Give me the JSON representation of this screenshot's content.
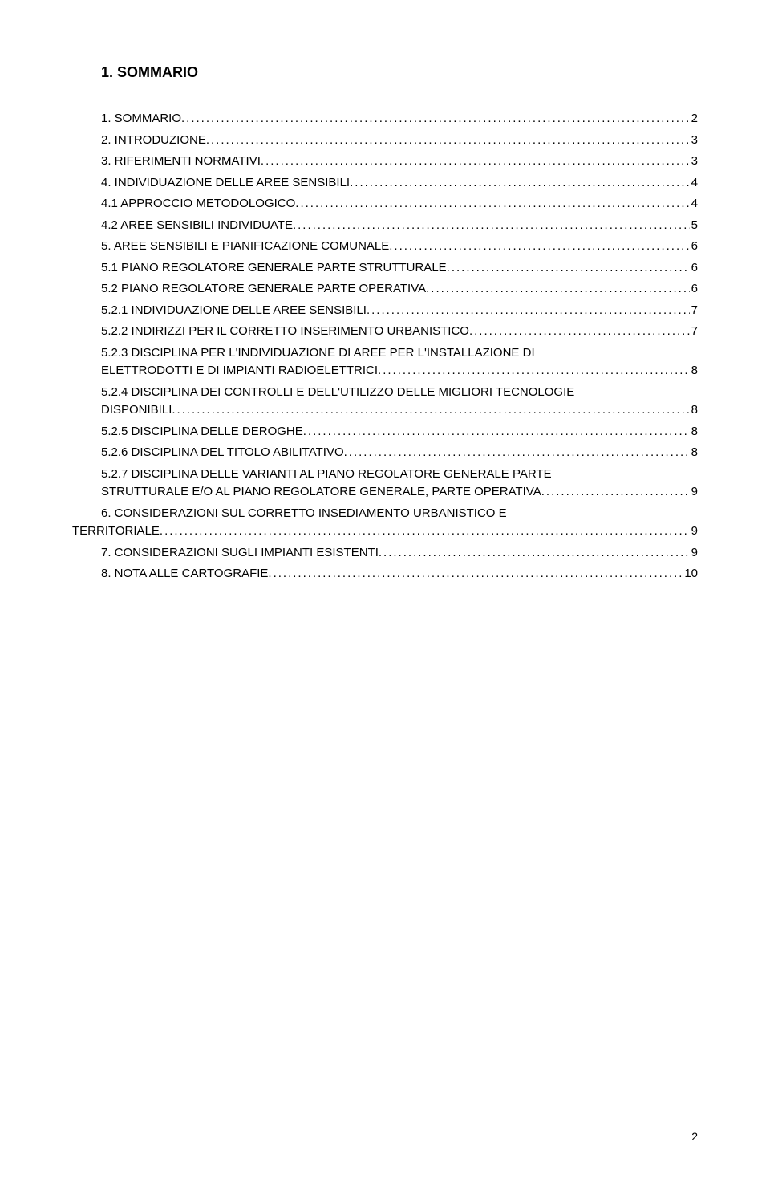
{
  "heading": "1.   SOMMARIO",
  "page_footer": "2",
  "toc": [
    {
      "label": "1.  SOMMARIO",
      "page": "2",
      "level": 1
    },
    {
      "label": "2.  INTRODUZIONE",
      "page": "3",
      "level": 1
    },
    {
      "label": "3.  RIFERIMENTI NORMATIVI",
      "page": "3",
      "level": 1
    },
    {
      "label": "4.  INDIVIDUAZIONE DELLE AREE SENSIBILI",
      "page": "4",
      "level": 1
    },
    {
      "label": "4.1  APPROCCIO METODOLOGICO",
      "page": "4",
      "level": 2,
      "sc": true
    },
    {
      "label": "4.2  AREE SENSIBILI INDIVIDUATE",
      "page": "5",
      "level": 2,
      "sc": true
    },
    {
      "label": "5.  AREE SENSIBILI E PIANIFICAZIONE COMUNALE",
      "page": "6",
      "level": 1
    },
    {
      "label": "5.1  PIANO REGOLATORE GENERALE PARTE STRUTTURALE",
      "page": "6",
      "level": 2,
      "sc": true
    },
    {
      "label": "5.2  PIANO REGOLATORE GENERALE PARTE OPERATIVA",
      "page": "6",
      "level": 2,
      "sc": true
    },
    {
      "label": "5.2.1  INDIVIDUAZIONE DELLE AREE SENSIBILI",
      "page": "7",
      "level": 3,
      "sc": true
    },
    {
      "label": "5.2.2  INDIRIZZI PER IL CORRETTO INSERIMENTO URBANISTICO",
      "page": "7",
      "level": 3,
      "sc": true
    },
    {
      "multi": true,
      "level": 3,
      "sc": true,
      "line1": "5.2.3  DISCIPLINA  PER  L'INDIVIDUAZIONE  DI  AREE  PER  L'INSTALLAZIONE  DI",
      "line2": "ELETTRODOTTI E DI IMPIANTI RADIOELETTRICI",
      "page": "8"
    },
    {
      "multi": true,
      "level": 3,
      "sc": true,
      "line1": "5.2.4  DISCIPLINA  DEI  CONTROLLI  E  DELL'UTILIZZO  DELLE  MIGLIORI  TECNOLOGIE",
      "line2": "DISPONIBILI",
      "page": "8"
    },
    {
      "label": "5.2.5  DISCIPLINA DELLE DEROGHE",
      "page": "8",
      "level": 3,
      "sc": true
    },
    {
      "label": "5.2.6  DISCIPLINA DEL TITOLO ABILITATIVO",
      "page": "8",
      "level": 3,
      "sc": true
    },
    {
      "multi": true,
      "level": 3,
      "sc": true,
      "line1": "5.2.7  DISCIPLINA  DELLE  VARIANTI  AL  PIANO  REGOLATORE  GENERALE  PARTE",
      "line2": "STRUTTURALE E/O AL PIANO REGOLATORE GENERALE, PARTE OPERATIVA",
      "page": "9"
    },
    {
      "multi": true,
      "level": 1,
      "line1": "6.  CONSIDERAZIONI  SUL  CORRETTO  INSEDIAMENTO  URBANISTICO  E",
      "line2": "TERRITORIALE",
      "page": "9",
      "line2_indent": 0
    },
    {
      "label": "7.  CONSIDERAZIONI SUGLI IMPIANTI ESISTENTI",
      "page": "9",
      "level": 1
    },
    {
      "label": "8.  NOTA ALLE CARTOGRAFIE",
      "page": "10",
      "level": 1
    }
  ]
}
